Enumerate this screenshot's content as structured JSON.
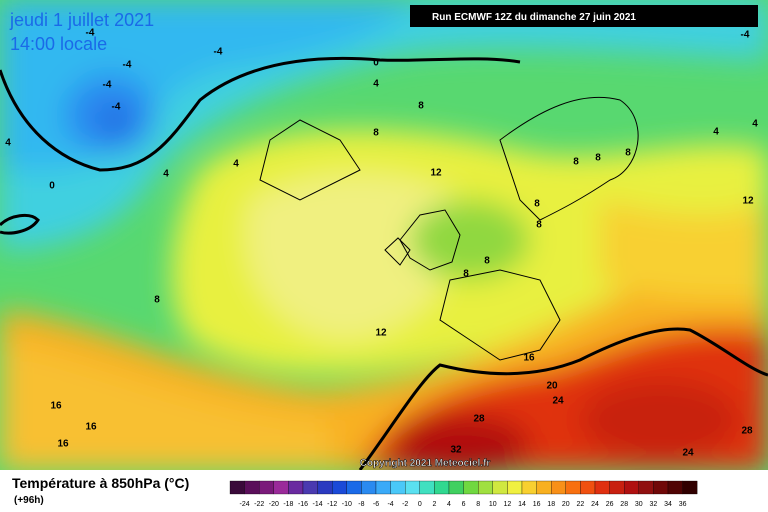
{
  "header": {
    "date": "jeudi 1 juillet 2021",
    "time": "14:00 locale",
    "run": "Run ECMWF 12Z du dimanche 27 juin 2021"
  },
  "footer": {
    "title": "Température à 850hPa (°C)",
    "lead": "(+96h)",
    "copyright": "Copyright 2021 Meteociel.fr"
  },
  "legend": {
    "labels": [
      -24,
      -22,
      -20,
      -18,
      -16,
      -14,
      -12,
      -10,
      -8,
      -6,
      -4,
      -2,
      0,
      2,
      4,
      6,
      8,
      10,
      12,
      14,
      16,
      18,
      20,
      22,
      24,
      26,
      28,
      30,
      32,
      34,
      36
    ],
    "colors": [
      "#3a0a3a",
      "#5a0f5a",
      "#7a1a7a",
      "#9a2a9a",
      "#6a2aa0",
      "#4a3ab0",
      "#2a3ac0",
      "#1a4ad8",
      "#1a6ae8",
      "#2a8af0",
      "#3aaaf8",
      "#4ac8f8",
      "#5ae0f0",
      "#40e0c0",
      "#30d890",
      "#40d060",
      "#70d840",
      "#a0e040",
      "#d0e840",
      "#f0f040",
      "#f8d030",
      "#f8b020",
      "#f89018",
      "#f87010",
      "#f05010",
      "#e03010",
      "#c82010",
      "#b01010",
      "#901010",
      "#700808",
      "#500404",
      "#300000"
    ]
  },
  "contour_labels": [
    "-4",
    "-4",
    "-4",
    "-4",
    "-4",
    "-4",
    "0",
    "0",
    "4",
    "4",
    "4",
    "4",
    "4",
    "4",
    "8",
    "8",
    "8",
    "8",
    "8",
    "8",
    "8",
    "8",
    "8",
    "8",
    "12",
    "12",
    "12",
    "16",
    "16",
    "16",
    "16",
    "20",
    "24",
    "24",
    "28",
    "28",
    "32"
  ]
}
